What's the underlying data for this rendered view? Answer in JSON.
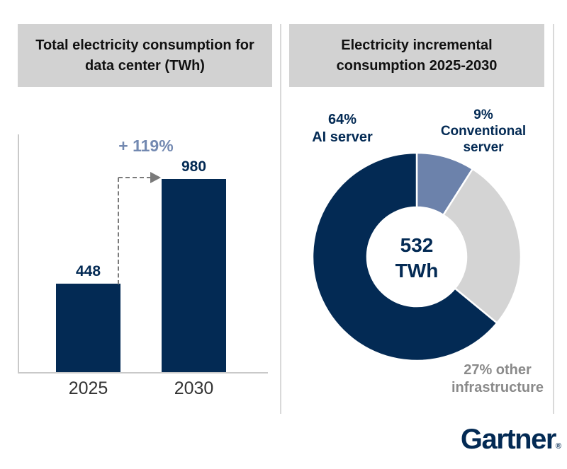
{
  "colors": {
    "navy": "#032a54",
    "blue_gray": "#6c82ab",
    "light_gray": "#d4d4d4",
    "header_bg": "#d2d2d2",
    "divider": "#d9d9d9",
    "axis": "#c9c9c9",
    "arrow": "#7a7a7a",
    "gray_text": "#8a8a8a",
    "tick_text": "#333333",
    "annotation_blue": "#7389b1"
  },
  "left_panel": {
    "title": "Total electricity consumption for data center (TWh)"
  },
  "right_panel": {
    "title": "Electricity incremental consumption 2025-2030",
    "donut_labels": {
      "ai": [
        "64%",
        "AI server"
      ],
      "conventional": [
        "9%",
        "Conventional",
        "server"
      ],
      "other": [
        "27% other",
        "infrastructure"
      ]
    },
    "center_value": "532",
    "center_unit": "TWh"
  },
  "chart_data": [
    {
      "type": "bar",
      "title": "Total electricity consumption for data center (TWh)",
      "categories": [
        "2025",
        "2030"
      ],
      "values": [
        448,
        980
      ],
      "unit": "TWh",
      "annotation": "+ 119%",
      "ylim": [
        0,
        980
      ],
      "bar_color": "#032a54",
      "grid": false
    },
    {
      "type": "pie",
      "subtype": "donut",
      "title": "Electricity incremental consumption 2025-2030",
      "center_label": "532 TWh",
      "start_angle_deg": 0,
      "direction": "clockwise",
      "segments": [
        {
          "label": "Conventional server",
          "pct": 9,
          "color": "#6c82ab"
        },
        {
          "label": "other infrastructure",
          "pct": 27,
          "color": "#d4d4d4"
        },
        {
          "label": "AI server",
          "pct": 64,
          "color": "#032a54"
        }
      ]
    }
  ],
  "footer": {
    "brand": "Gartner",
    "reg_mark": "®"
  }
}
